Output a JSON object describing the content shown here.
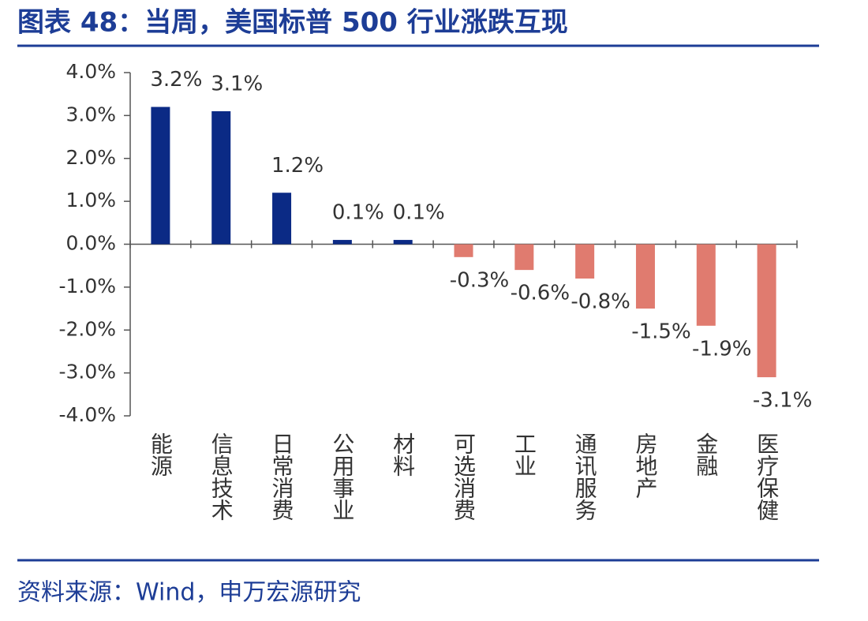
{
  "chart_data": {
    "type": "bar",
    "title": "图表 48：当周，美国标普 500 行业涨跌互现",
    "source": "资料来源：Wind，申万宏源研究",
    "categories": [
      "能源",
      "信息技术",
      "日常消费",
      "公用事业",
      "材料",
      "可选消费",
      "工业",
      "通讯服务",
      "房地产",
      "金融",
      "医疗保健"
    ],
    "values": [
      3.2,
      3.1,
      1.2,
      0.1,
      0.1,
      -0.3,
      -0.6,
      -0.8,
      -1.5,
      -1.9,
      -3.1
    ],
    "value_labels": [
      "3.2%",
      "3.1%",
      "1.2%",
      "0.1%",
      "0.1%",
      "-0.3%",
      "-0.6%",
      "-0.8%",
      "-1.5%",
      "-1.9%",
      "-3.1%"
    ],
    "colors": [
      "#0b2a85",
      "#0b2a85",
      "#0b2a85",
      "#0b2a85",
      "#0b2a85",
      "#e07b6f",
      "#e07b6f",
      "#e07b6f",
      "#e07b6f",
      "#e07b6f",
      "#e07b6f"
    ],
    "ylim": [
      -4,
      4
    ],
    "yticks": [
      {
        "value": 4,
        "label": "4.0%"
      },
      {
        "value": 3,
        "label": "3.0%"
      },
      {
        "value": 2,
        "label": "2.0%"
      },
      {
        "value": 1,
        "label": "1.0%"
      },
      {
        "value": 0,
        "label": "0.0%"
      },
      {
        "value": -1,
        "label": "-1.0%"
      },
      {
        "value": -2,
        "label": "-2.0%"
      },
      {
        "value": -3,
        "label": "-3.0%"
      },
      {
        "value": -4,
        "label": "-4.0%"
      }
    ],
    "grid": false
  }
}
